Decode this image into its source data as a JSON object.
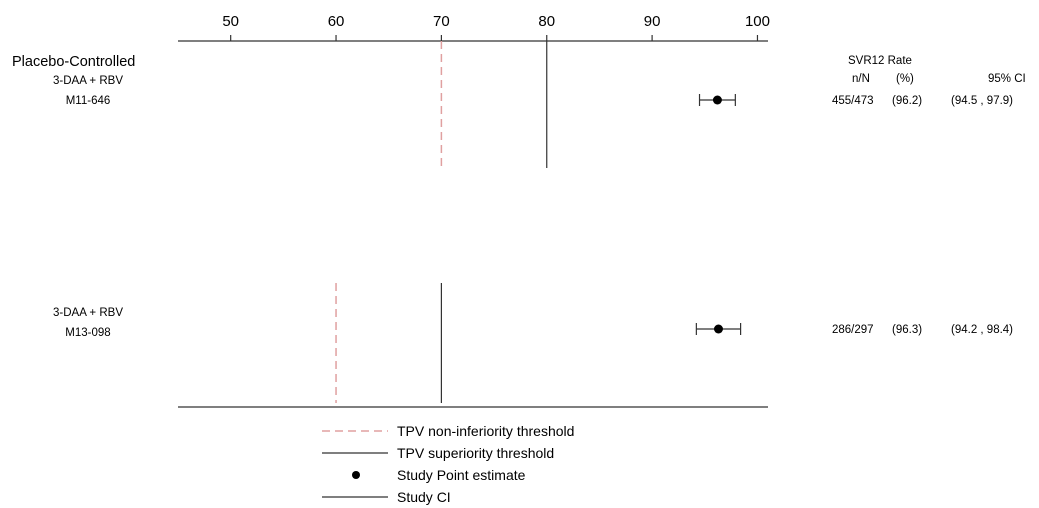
{
  "chart_data": {
    "type": "forest",
    "xlim": [
      45,
      101
    ],
    "xticks": [
      50,
      60,
      70,
      80,
      90,
      100
    ],
    "tick_labels": [
      "50",
      "60",
      "70",
      "80",
      "90",
      "100"
    ],
    "section_label": "Placebo-Controlled",
    "header": {
      "title": "SVR12 Rate",
      "n_label": "n/N",
      "pct_label": "(%)",
      "ci_label": "95% CI"
    },
    "studies": [
      {
        "line1": "3-DAA + RBV",
        "line2": "M11-646",
        "estimate": 96.2,
        "ci": [
          94.5,
          97.9
        ],
        "nN": "455/473",
        "pct": "(96.2)",
        "ci_text": "(94.5 , 97.9)",
        "noninferiority": 70,
        "superiority": 80
      },
      {
        "line1": "3-DAA + RBV",
        "line2": "M13-098",
        "estimate": 96.3,
        "ci": [
          94.2,
          98.4
        ],
        "nN": "286/297",
        "pct": "(96.3)",
        "ci_text": "(94.2 , 98.4)",
        "noninferiority": 60,
        "superiority": 70
      }
    ],
    "legend": [
      {
        "type": "dashed",
        "label": "TPV non-inferiority threshold"
      },
      {
        "type": "line",
        "label": "TPV superiority threshold"
      },
      {
        "type": "point",
        "label": "Study Point estimate"
      },
      {
        "type": "line",
        "label": "Study CI"
      }
    ],
    "colors": {
      "dashed": "#e0a0a0",
      "line": "#333333",
      "point": "#000000"
    }
  }
}
